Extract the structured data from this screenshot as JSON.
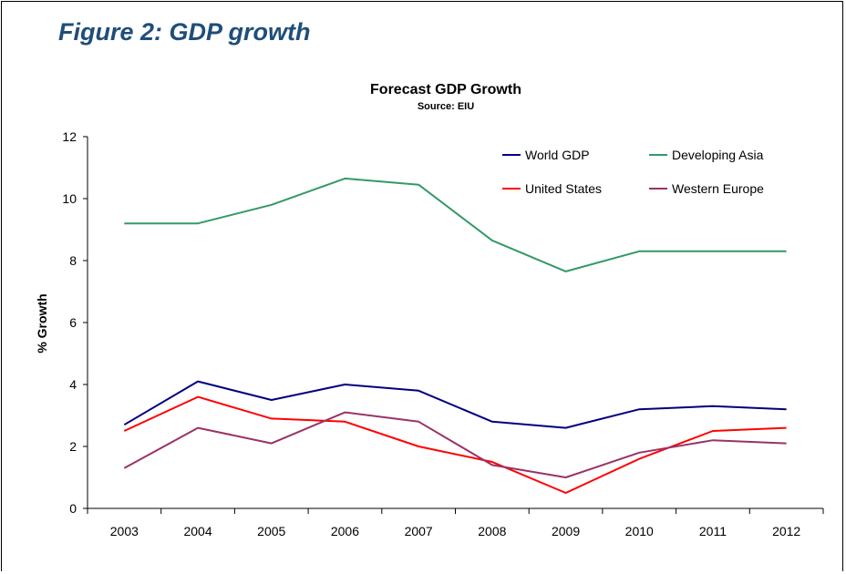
{
  "figure_title": "Figure 2: GDP growth",
  "chart_data": {
    "type": "line",
    "title": "Forecast GDP Growth",
    "subtitle": "Source: EIU",
    "xlabel": "",
    "ylabel": "% Growth",
    "ylim": [
      0,
      12
    ],
    "yticks": [
      "0",
      "2",
      "4",
      "6",
      "8",
      "10",
      "12"
    ],
    "categories": [
      "2003",
      "2004",
      "2005",
      "2006",
      "2007",
      "2008",
      "2009",
      "2010",
      "2011",
      "2012"
    ],
    "grid": false,
    "legend_position": "top-right",
    "series": [
      {
        "name": "World GDP",
        "color": "#000080",
        "values": [
          2.7,
          4.1,
          3.5,
          4.0,
          3.8,
          2.8,
          2.6,
          3.2,
          3.3,
          3.2
        ]
      },
      {
        "name": "Developing Asia",
        "color": "#339966",
        "values": [
          9.2,
          9.2,
          9.8,
          10.65,
          10.45,
          8.65,
          7.65,
          8.3,
          8.3,
          8.3
        ]
      },
      {
        "name": "United States",
        "color": "#ff0000",
        "values": [
          2.5,
          3.6,
          2.9,
          2.8,
          2.0,
          1.5,
          0.5,
          1.6,
          2.5,
          2.6
        ]
      },
      {
        "name": "Western Europe",
        "color": "#993366",
        "values": [
          1.3,
          2.6,
          2.1,
          3.1,
          2.8,
          1.4,
          1.0,
          1.8,
          2.2,
          2.1
        ]
      }
    ]
  }
}
